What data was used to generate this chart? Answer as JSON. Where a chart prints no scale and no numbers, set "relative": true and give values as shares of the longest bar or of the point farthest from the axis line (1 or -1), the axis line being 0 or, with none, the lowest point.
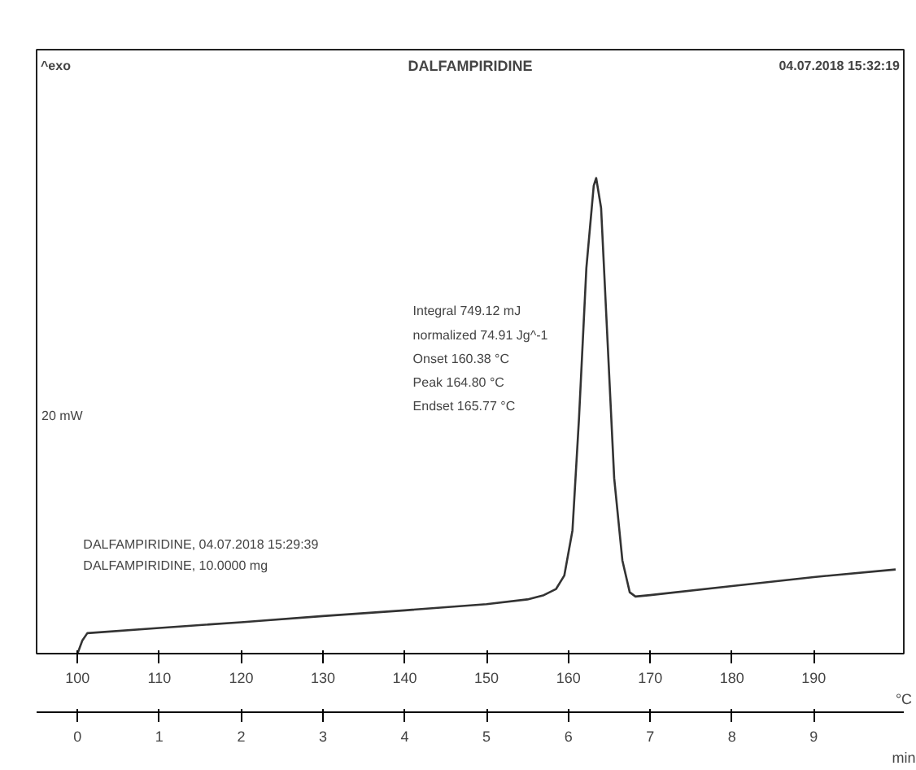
{
  "chart_data": {
    "type": "line",
    "relative": true,
    "title": "DALFAMPIRIDINE",
    "xlabel": "°C",
    "x2label": "min",
    "ylabel": "20 mW",
    "xlim": [
      95,
      201
    ],
    "xticks": [
      100,
      110,
      120,
      130,
      140,
      150,
      160,
      170,
      180,
      190
    ],
    "x2lim": [
      -0.5,
      10.1
    ],
    "x2ticks": [
      0,
      1,
      2,
      3,
      4,
      5,
      6,
      7,
      8,
      9
    ],
    "x": [
      100,
      100.6,
      101.2,
      110,
      120,
      130,
      140,
      150,
      155,
      157,
      158.5,
      159.5,
      160.5,
      161.3,
      162.2,
      163.1,
      163.4,
      164,
      164.8,
      165.6,
      166.6,
      167.5,
      168.2,
      170,
      180,
      190,
      200
    ],
    "series": [
      {
        "color": "#333333",
        "values": [
          0,
          0.028,
          0.043,
          0.054,
          0.066,
          0.079,
          0.091,
          0.104,
          0.114,
          0.123,
          0.136,
          0.164,
          0.259,
          0.495,
          0.811,
          0.984,
          1.0,
          0.937,
          0.653,
          0.369,
          0.196,
          0.129,
          0.12,
          0.123,
          0.142,
          0.161,
          0.177
        ]
      }
    ],
    "annotations": [
      "^exo",
      "04.07.2018 15:32:19",
      "Integral 749.12 mJ",
      "normalized 74.91 Jg^-1",
      "Onset 160.38 °C",
      "Peak 164.80 °C",
      "Endset 165.77 °C",
      "DALFAMPIRIDINE, 04.07.2018 15:29:39",
      "DALFAMPIRIDINE, 10.0000 mg"
    ],
    "grid": false,
    "marker": "none",
    "line_style": "solid"
  }
}
